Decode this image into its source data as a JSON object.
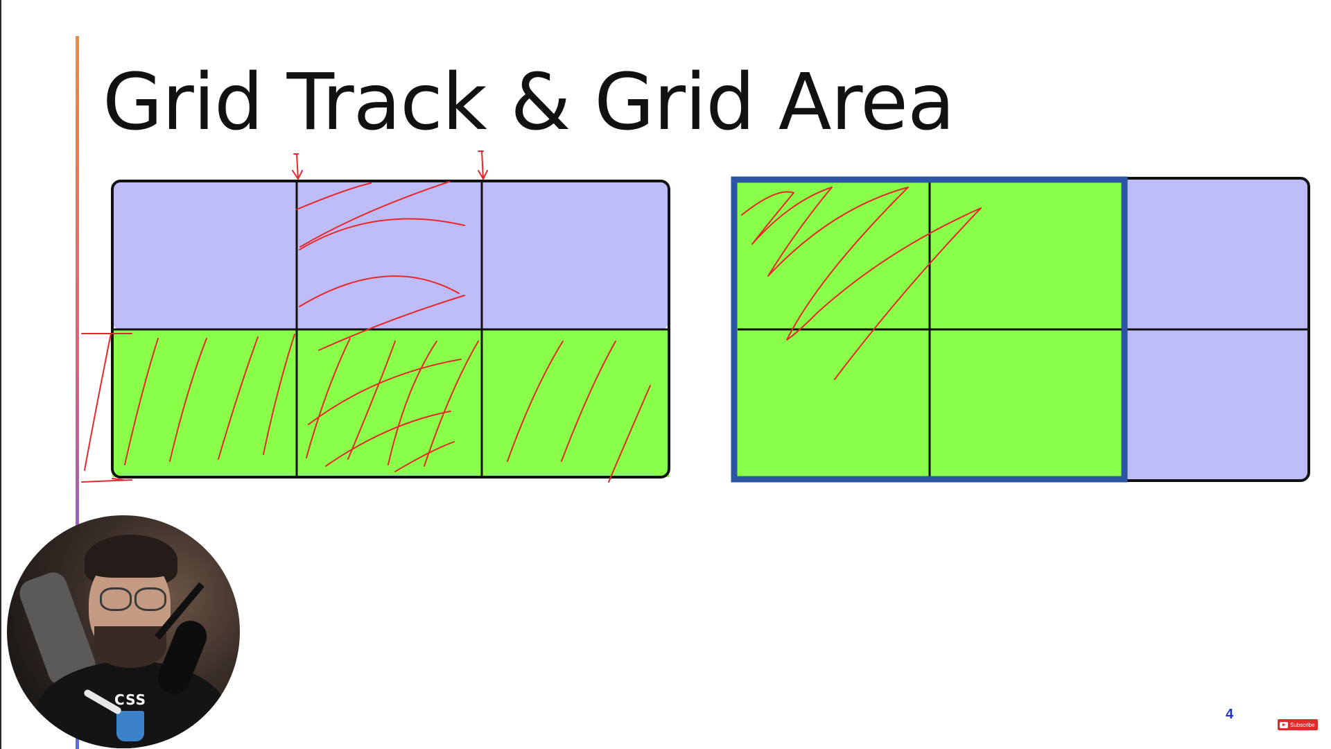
{
  "slide": {
    "title": "Grid Track & Grid Area",
    "page_number": "4"
  },
  "colors": {
    "track_cell": "#bdbcf7",
    "area_cell": "#8aff4a",
    "grid_line": "#111111",
    "area_highlight": "#2d55a5",
    "annotation_ink": "#e8262a",
    "accent": "#2233cc"
  },
  "track_grid": {
    "columns": 3,
    "rows": 2,
    "row_fill": [
      "track",
      "area"
    ]
  },
  "area_grid": {
    "columns": 3,
    "rows": 2,
    "selected_columns": [
      1,
      2
    ],
    "selected_rows": [
      1,
      2
    ]
  },
  "subscribe": {
    "label": "Subscribe",
    "icon": "youtube-play-icon"
  },
  "webcam": {
    "badge_text": "CSS",
    "icon": "presenter-video-feed"
  }
}
